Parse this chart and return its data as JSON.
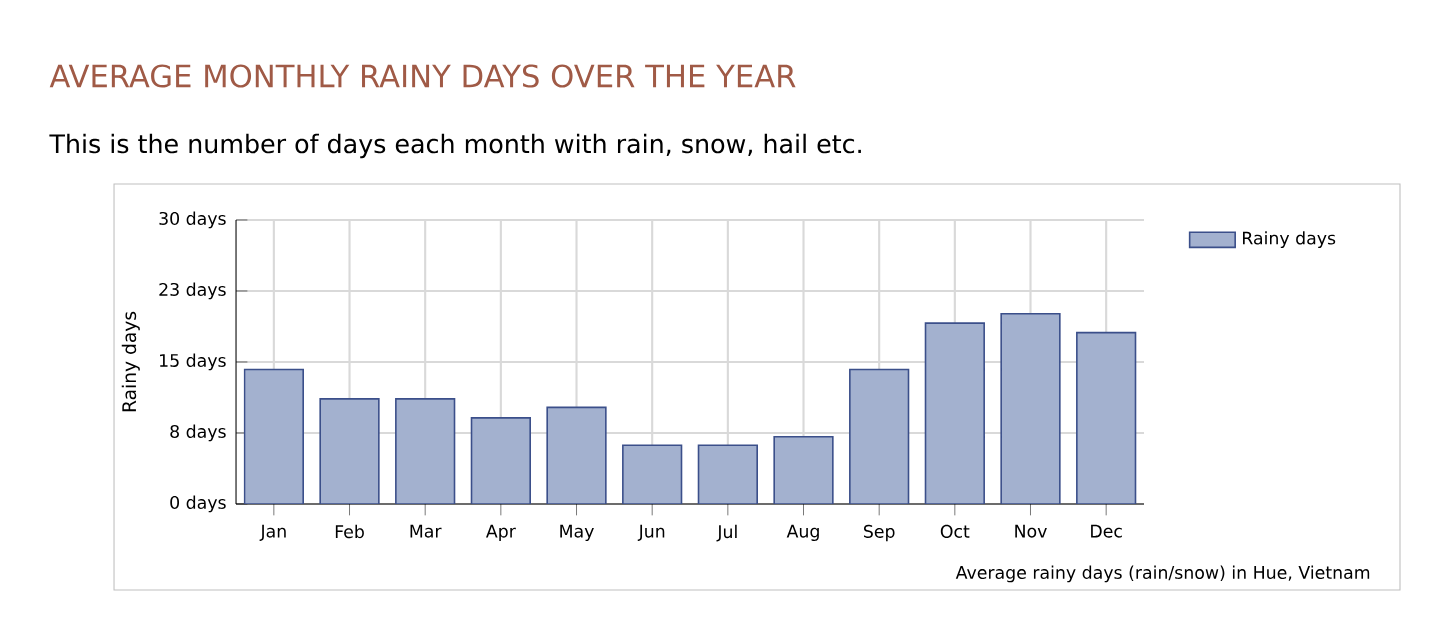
{
  "chart_data": {
    "type": "bar",
    "title": "AVERAGE MONTHLY RAINY DAYS OVER THE YEAR",
    "subtitle": "This is the number of days each month with rain, snow, hail etc.",
    "ylabel": "Rainy days",
    "annotations": [
      "Average rainy days (rain/snow) in Hue, Vietnam"
    ],
    "categories": [
      "Jan",
      "Feb",
      "Mar",
      "Apr",
      "May",
      "Jun",
      "Jul",
      "Aug",
      "Sep",
      "Oct",
      "Nov",
      "Dec"
    ],
    "series": [
      {
        "name": "Rainy days",
        "color": "#a3b1cf",
        "values": [
          14.2,
          11.1,
          11.1,
          9.1,
          10.2,
          6.2,
          6.2,
          7.1,
          14.2,
          19.1,
          20.1,
          18.1
        ]
      }
    ],
    "ylim": [
      0,
      30
    ],
    "yticks": [
      {
        "value": 0,
        "label": "0 days"
      },
      {
        "value": 7.5,
        "label": "8 days"
      },
      {
        "value": 15,
        "label": "15 days"
      },
      {
        "value": 22.5,
        "label": "23 days"
      },
      {
        "value": 30,
        "label": "30 days"
      }
    ],
    "grid": true,
    "legend": "top right"
  }
}
